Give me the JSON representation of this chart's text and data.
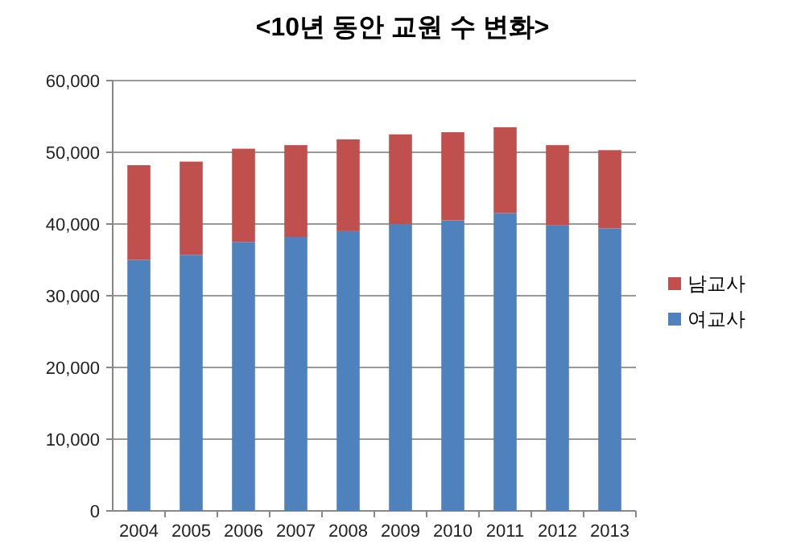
{
  "chart_data": {
    "type": "bar",
    "title": "<10년 동안 교원 수 변화>",
    "categories": [
      "2004",
      "2005",
      "2006",
      "2007",
      "2008",
      "2009",
      "2010",
      "2011",
      "2012",
      "2013"
    ],
    "stacked": true,
    "series": [
      {
        "name": "여교사",
        "color": "#4f81bd",
        "values": [
          35000,
          35700,
          37500,
          38200,
          39000,
          40000,
          40500,
          41500,
          39800,
          39400
        ]
      },
      {
        "name": "남교사",
        "color": "#c0504d",
        "values": [
          13200,
          13000,
          13000,
          12800,
          12800,
          12500,
          12300,
          12000,
          11200,
          10900
        ]
      }
    ],
    "ylim": [
      0,
      60000
    ],
    "yticks": [
      {
        "value": 0,
        "label": "0"
      },
      {
        "value": 10000,
        "label": "10,000"
      },
      {
        "value": 20000,
        "label": "20,000"
      },
      {
        "value": 30000,
        "label": "30,000"
      },
      {
        "value": 40000,
        "label": "40,000"
      },
      {
        "value": 50000,
        "label": "50,000"
      },
      {
        "value": 60000,
        "label": "60,000"
      }
    ],
    "grid": "y",
    "legend": "right"
  }
}
